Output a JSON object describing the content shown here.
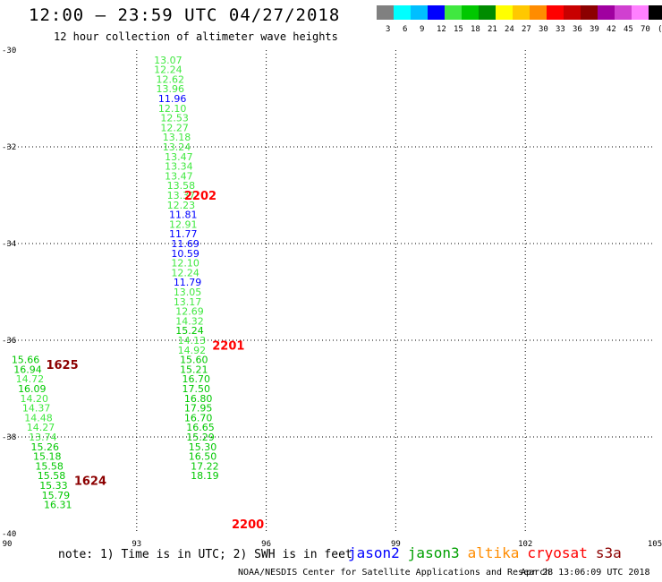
{
  "header": {
    "title": "12:00 – 23:59 UTC 04/27/2018",
    "subtitle": "12 hour collection of altimeter wave heights"
  },
  "colorbar": {
    "labels": [
      "3",
      "6",
      "9",
      "12",
      "15",
      "18",
      "21",
      "24",
      "27",
      "30",
      "33",
      "36",
      "39",
      "42",
      "45",
      "70",
      "(ft)"
    ],
    "colors": [
      "#808080",
      "#00ffff",
      "#00bfff",
      "#0000ff",
      "#40e840",
      "#00c800",
      "#008c00",
      "#ffff00",
      "#ffc800",
      "#ff8c00",
      "#ff0000",
      "#c80000",
      "#8c0000",
      "#a000a0",
      "#d040d0",
      "#ff80ff",
      "#000000"
    ]
  },
  "footer": {
    "note": "note: 1) Time is in UTC; 2) SWH is in feet",
    "credit": "NOAA/NESDIS Center for Satellite Applications and Research",
    "timestamp": "Apr 28 13:06:09 UTC 2018"
  },
  "legend": [
    {
      "name": "jason2",
      "color": "#0000ff"
    },
    {
      "name": "jason3",
      "color": "#00a000"
    },
    {
      "name": "altika",
      "color": "#ff8c00"
    },
    {
      "name": "cryosat",
      "color": "#ff0000"
    },
    {
      "name": "s3a",
      "color": "#8c0000"
    }
  ],
  "chart_data": {
    "type": "scatter",
    "xticks": [
      "90",
      "93",
      "96",
      "99",
      "102",
      "105"
    ],
    "yticks": [
      "-30",
      "-32",
      "-34",
      "-36",
      "-38",
      "-40"
    ],
    "xlim": [
      90,
      105
    ],
    "ylim": [
      -40,
      -30
    ],
    "grid": "dotted",
    "points": [
      {
        "x": 93.4,
        "y": -30.2,
        "label": "13.07",
        "color": "#40e840"
      },
      {
        "x": 93.4,
        "y": -30.4,
        "label": "12.24",
        "color": "#40e840"
      },
      {
        "x": 93.45,
        "y": -30.6,
        "label": "12.62",
        "color": "#40e840"
      },
      {
        "x": 93.45,
        "y": -30.8,
        "label": "13.96",
        "color": "#40e840"
      },
      {
        "x": 93.5,
        "y": -31.0,
        "label": "11.96",
        "color": "#0000ff"
      },
      {
        "x": 93.5,
        "y": -31.2,
        "label": "12.10",
        "color": "#40e840"
      },
      {
        "x": 93.55,
        "y": -31.4,
        "label": "12.53",
        "color": "#40e840"
      },
      {
        "x": 93.55,
        "y": -31.6,
        "label": "12.27",
        "color": "#40e840"
      },
      {
        "x": 93.6,
        "y": -31.8,
        "label": "13.18",
        "color": "#40e840"
      },
      {
        "x": 93.6,
        "y": -32.0,
        "label": "13.24",
        "color": "#40e840"
      },
      {
        "x": 93.65,
        "y": -32.2,
        "label": "13.47",
        "color": "#40e840"
      },
      {
        "x": 93.65,
        "y": -32.4,
        "label": "13.34",
        "color": "#40e840"
      },
      {
        "x": 93.65,
        "y": -32.6,
        "label": "13.47",
        "color": "#40e840"
      },
      {
        "x": 93.7,
        "y": -32.8,
        "label": "13.58",
        "color": "#40e840"
      },
      {
        "x": 93.7,
        "y": -33.0,
        "label": "13.37",
        "color": "#40e840"
      },
      {
        "x": 93.7,
        "y": -33.2,
        "label": "12.23",
        "color": "#40e840"
      },
      {
        "x": 93.75,
        "y": -33.4,
        "label": "11.81",
        "color": "#0000ff"
      },
      {
        "x": 93.75,
        "y": -33.6,
        "label": "12.91",
        "color": "#40e840"
      },
      {
        "x": 93.75,
        "y": -33.8,
        "label": "11.77",
        "color": "#0000ff"
      },
      {
        "x": 93.8,
        "y": -34.0,
        "label": "11.69",
        "color": "#0000ff"
      },
      {
        "x": 93.8,
        "y": -34.2,
        "label": "10.59",
        "color": "#0000ff"
      },
      {
        "x": 93.8,
        "y": -34.4,
        "label": "12.10",
        "color": "#40e840"
      },
      {
        "x": 93.8,
        "y": -34.6,
        "label": "12.24",
        "color": "#40e840"
      },
      {
        "x": 93.85,
        "y": -34.8,
        "label": "11.79",
        "color": "#0000ff"
      },
      {
        "x": 93.85,
        "y": -35.0,
        "label": "13.05",
        "color": "#40e840"
      },
      {
        "x": 93.85,
        "y": -35.2,
        "label": "13.17",
        "color": "#40e840"
      },
      {
        "x": 93.9,
        "y": -35.4,
        "label": "12.69",
        "color": "#40e840"
      },
      {
        "x": 93.9,
        "y": -35.6,
        "label": "14.32",
        "color": "#40e840"
      },
      {
        "x": 93.9,
        "y": -35.8,
        "label": "15.24",
        "color": "#00c800"
      },
      {
        "x": 93.95,
        "y": -36.0,
        "label": "14.13",
        "color": "#40e840"
      },
      {
        "x": 93.95,
        "y": -36.2,
        "label": "14.92",
        "color": "#40e840"
      },
      {
        "x": 94.0,
        "y": -36.4,
        "label": "15.60",
        "color": "#00c800"
      },
      {
        "x": 94.0,
        "y": -36.6,
        "label": "15.21",
        "color": "#00c800"
      },
      {
        "x": 94.05,
        "y": -36.8,
        "label": "16.70",
        "color": "#00c800"
      },
      {
        "x": 94.05,
        "y": -37.0,
        "label": "17.50",
        "color": "#00c800"
      },
      {
        "x": 94.1,
        "y": -37.2,
        "label": "16.80",
        "color": "#00c800"
      },
      {
        "x": 94.1,
        "y": -37.4,
        "label": "17.95",
        "color": "#00c800"
      },
      {
        "x": 94.1,
        "y": -37.6,
        "label": "16.70",
        "color": "#00c800"
      },
      {
        "x": 94.15,
        "y": -37.8,
        "label": "16.65",
        "color": "#00c800"
      },
      {
        "x": 94.15,
        "y": -38.0,
        "label": "15.29",
        "color": "#00c800"
      },
      {
        "x": 94.2,
        "y": -38.2,
        "label": "15.30",
        "color": "#00c800"
      },
      {
        "x": 94.2,
        "y": -38.4,
        "label": "16.50",
        "color": "#00c800"
      },
      {
        "x": 94.25,
        "y": -38.6,
        "label": "17.22",
        "color": "#00c800"
      },
      {
        "x": 94.25,
        "y": -38.8,
        "label": "18.19",
        "color": "#00c800"
      },
      {
        "x": 90.1,
        "y": -36.4,
        "label": "15.66",
        "color": "#00c800"
      },
      {
        "x": 90.15,
        "y": -36.6,
        "label": "16.94",
        "color": "#00c800"
      },
      {
        "x": 90.2,
        "y": -36.8,
        "label": "14.72",
        "color": "#40e840"
      },
      {
        "x": 90.25,
        "y": -37.0,
        "label": "16.09",
        "color": "#00c800"
      },
      {
        "x": 90.3,
        "y": -37.2,
        "label": "14.20",
        "color": "#40e840"
      },
      {
        "x": 90.35,
        "y": -37.4,
        "label": "14.37",
        "color": "#40e840"
      },
      {
        "x": 90.4,
        "y": -37.6,
        "label": "14.48",
        "color": "#40e840"
      },
      {
        "x": 90.45,
        "y": -37.8,
        "label": "14.27",
        "color": "#40e840"
      },
      {
        "x": 90.5,
        "y": -38.0,
        "label": "13.74",
        "color": "#40e840"
      },
      {
        "x": 90.55,
        "y": -38.2,
        "label": "15.26",
        "color": "#00c800"
      },
      {
        "x": 90.6,
        "y": -38.4,
        "label": "15.18",
        "color": "#00c800"
      },
      {
        "x": 90.65,
        "y": -38.6,
        "label": "15.58",
        "color": "#00c800"
      },
      {
        "x": 90.7,
        "y": -38.8,
        "label": "15.58",
        "color": "#00c800"
      },
      {
        "x": 90.75,
        "y": -39.0,
        "label": "15.33",
        "color": "#00c800"
      },
      {
        "x": 90.8,
        "y": -39.2,
        "label": "15.79",
        "color": "#00c800"
      },
      {
        "x": 90.85,
        "y": -39.4,
        "label": "16.31",
        "color": "#00c800"
      }
    ],
    "time_labels": [
      {
        "x": 94.1,
        "y": -33.0,
        "label": "2202",
        "color": "#ff0000"
      },
      {
        "x": 94.75,
        "y": -36.1,
        "label": "2201",
        "color": "#ff0000"
      },
      {
        "x": 95.2,
        "y": -39.8,
        "label": "2200",
        "color": "#ff0000"
      },
      {
        "x": 90.9,
        "y": -36.5,
        "label": "1625",
        "color": "#8c0000"
      },
      {
        "x": 91.55,
        "y": -38.9,
        "label": "1624",
        "color": "#8c0000"
      }
    ]
  }
}
